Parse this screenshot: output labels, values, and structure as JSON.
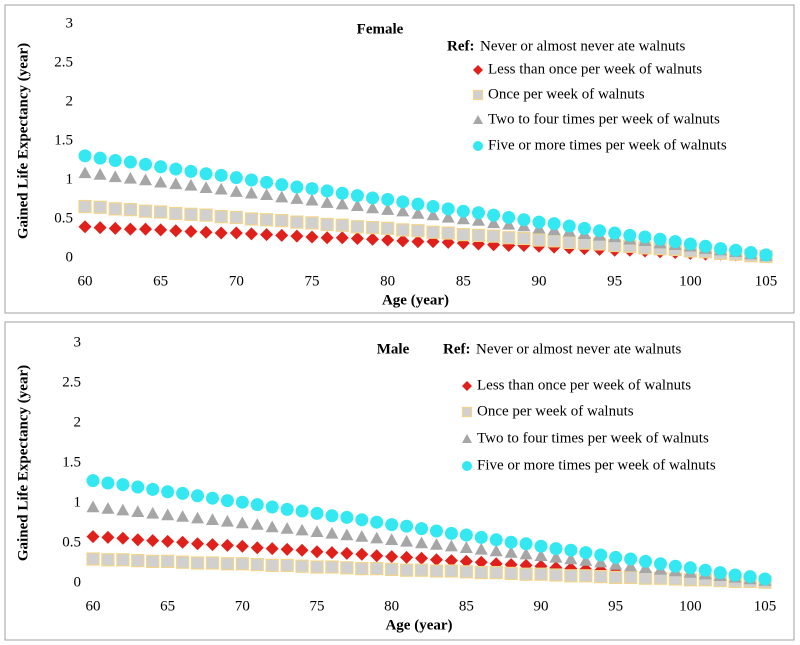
{
  "chart_data": [
    {
      "type": "scatter",
      "title": "Female",
      "x_label": "Age (year)",
      "y_label": "Gained Life Expectancy (year)",
      "legend_note": "Ref:",
      "legend_note_text": "Never or almost never ate walnuts",
      "xlim": [
        60,
        105
      ],
      "xticks": [
        60,
        65,
        70,
        75,
        80,
        85,
        90,
        95,
        100,
        105
      ],
      "ylim": [
        0,
        3
      ],
      "yticks": [
        0,
        0.5,
        1,
        1.5,
        2,
        2.5,
        3
      ],
      "grid": false,
      "x": [
        60,
        61,
        62,
        63,
        64,
        65,
        66,
        67,
        68,
        69,
        70,
        71,
        72,
        73,
        74,
        75,
        76,
        77,
        78,
        79,
        80,
        81,
        82,
        83,
        84,
        85,
        86,
        87,
        88,
        89,
        90,
        91,
        92,
        93,
        94,
        95,
        96,
        97,
        98,
        99,
        100,
        101,
        102,
        103,
        104,
        105
      ],
      "series": [
        {
          "name": "Less than once per week of walnuts",
          "color": "#e0201b",
          "marker": "diamond",
          "values": [
            0.4,
            0.39,
            0.38,
            0.37,
            0.37,
            0.36,
            0.35,
            0.34,
            0.33,
            0.32,
            0.32,
            0.31,
            0.3,
            0.29,
            0.28,
            0.27,
            0.26,
            0.26,
            0.25,
            0.24,
            0.23,
            0.22,
            0.21,
            0.21,
            0.2,
            0.19,
            0.18,
            0.17,
            0.16,
            0.16,
            0.15,
            0.14,
            0.13,
            0.12,
            0.11,
            0.1,
            0.1,
            0.09,
            0.08,
            0.07,
            0.06,
            0.05,
            0.05,
            0.04,
            0.03,
            0.02
          ]
        },
        {
          "name": "Once per week of walnuts",
          "color": "#d0d0d0",
          "marker": "square",
          "values": [
            0.66,
            0.65,
            0.63,
            0.62,
            0.6,
            0.59,
            0.57,
            0.56,
            0.55,
            0.53,
            0.52,
            0.5,
            0.49,
            0.48,
            0.46,
            0.45,
            0.43,
            0.42,
            0.4,
            0.39,
            0.38,
            0.36,
            0.35,
            0.33,
            0.32,
            0.3,
            0.29,
            0.28,
            0.26,
            0.25,
            0.23,
            0.22,
            0.2,
            0.19,
            0.18,
            0.16,
            0.15,
            0.13,
            0.12,
            0.11,
            0.09,
            0.08,
            0.06,
            0.05,
            0.03,
            0.02
          ]
        },
        {
          "name": "Two to four times per week of walnuts",
          "color": "#a6a6a6",
          "marker": "triangle",
          "values": [
            1.09,
            1.07,
            1.04,
            1.02,
            1.0,
            0.97,
            0.95,
            0.93,
            0.9,
            0.88,
            0.85,
            0.83,
            0.81,
            0.78,
            0.76,
            0.74,
            0.71,
            0.69,
            0.67,
            0.64,
            0.62,
            0.6,
            0.57,
            0.55,
            0.52,
            0.5,
            0.48,
            0.45,
            0.43,
            0.41,
            0.38,
            0.36,
            0.34,
            0.31,
            0.29,
            0.27,
            0.24,
            0.22,
            0.19,
            0.17,
            0.15,
            0.12,
            0.1,
            0.08,
            0.05,
            0.03
          ]
        },
        {
          "name": "Five or more times per week of walnuts",
          "color": "#33e8f0",
          "marker": "circle",
          "values": [
            1.31,
            1.28,
            1.25,
            1.23,
            1.2,
            1.17,
            1.14,
            1.11,
            1.08,
            1.06,
            1.03,
            1.0,
            0.97,
            0.94,
            0.91,
            0.89,
            0.86,
            0.83,
            0.8,
            0.77,
            0.75,
            0.72,
            0.69,
            0.66,
            0.63,
            0.6,
            0.58,
            0.55,
            0.52,
            0.49,
            0.46,
            0.44,
            0.41,
            0.38,
            0.35,
            0.32,
            0.29,
            0.27,
            0.24,
            0.21,
            0.18,
            0.15,
            0.12,
            0.1,
            0.07,
            0.04
          ]
        }
      ]
    },
    {
      "type": "scatter",
      "title": "Male",
      "x_label": "Age (year)",
      "y_label": "Gained Life Expectancy (year)",
      "legend_note": "Ref:",
      "legend_note_text": "Never or almost never ate walnuts",
      "xlim": [
        60,
        105
      ],
      "xticks": [
        60,
        65,
        70,
        75,
        80,
        85,
        90,
        95,
        100,
        105
      ],
      "ylim": [
        0,
        3
      ],
      "yticks": [
        0,
        0.5,
        1,
        1.5,
        2,
        2.5,
        3
      ],
      "grid": false,
      "x": [
        60,
        61,
        62,
        63,
        64,
        65,
        66,
        67,
        68,
        69,
        70,
        71,
        72,
        73,
        74,
        75,
        76,
        77,
        78,
        79,
        80,
        81,
        82,
        83,
        84,
        85,
        86,
        87,
        88,
        89,
        90,
        91,
        92,
        93,
        94,
        95,
        96,
        97,
        98,
        99,
        100,
        101,
        102,
        103,
        104,
        105
      ],
      "series": [
        {
          "name": "Less than once per week of walnuts",
          "color": "#e0201b",
          "marker": "diamond",
          "values": [
            0.58,
            0.57,
            0.56,
            0.54,
            0.53,
            0.52,
            0.51,
            0.49,
            0.48,
            0.47,
            0.46,
            0.44,
            0.43,
            0.42,
            0.41,
            0.39,
            0.38,
            0.37,
            0.36,
            0.34,
            0.33,
            0.32,
            0.31,
            0.29,
            0.28,
            0.27,
            0.26,
            0.24,
            0.23,
            0.22,
            0.21,
            0.19,
            0.18,
            0.17,
            0.16,
            0.14,
            0.13,
            0.12,
            0.11,
            0.09,
            0.08,
            0.07,
            0.06,
            0.05,
            0.03,
            0.02
          ]
        },
        {
          "name": "Once per week of walnuts",
          "color": "#d0d0d0",
          "marker": "square",
          "values": [
            0.3,
            0.29,
            0.29,
            0.28,
            0.27,
            0.27,
            0.26,
            0.25,
            0.25,
            0.24,
            0.24,
            0.23,
            0.22,
            0.22,
            0.21,
            0.2,
            0.2,
            0.19,
            0.18,
            0.18,
            0.17,
            0.16,
            0.16,
            0.15,
            0.15,
            0.14,
            0.13,
            0.13,
            0.12,
            0.11,
            0.11,
            0.1,
            0.09,
            0.09,
            0.08,
            0.07,
            0.07,
            0.06,
            0.06,
            0.05,
            0.04,
            0.04,
            0.03,
            0.02,
            0.02,
            0.01
          ]
        },
        {
          "name": "Two to four times per week of walnuts",
          "color": "#a6a6a6",
          "marker": "triangle",
          "values": [
            0.95,
            0.93,
            0.91,
            0.89,
            0.87,
            0.85,
            0.83,
            0.81,
            0.79,
            0.77,
            0.75,
            0.73,
            0.7,
            0.68,
            0.66,
            0.64,
            0.62,
            0.6,
            0.58,
            0.56,
            0.54,
            0.52,
            0.5,
            0.48,
            0.46,
            0.44,
            0.42,
            0.4,
            0.38,
            0.36,
            0.34,
            0.32,
            0.3,
            0.28,
            0.26,
            0.23,
            0.21,
            0.19,
            0.17,
            0.15,
            0.13,
            0.11,
            0.09,
            0.07,
            0.05,
            0.03
          ]
        },
        {
          "name": "Five or more times per week of walnuts",
          "color": "#33e8f0",
          "marker": "circle",
          "values": [
            1.28,
            1.25,
            1.23,
            1.2,
            1.17,
            1.14,
            1.12,
            1.09,
            1.06,
            1.03,
            1.01,
            0.98,
            0.95,
            0.92,
            0.9,
            0.87,
            0.84,
            0.82,
            0.79,
            0.76,
            0.73,
            0.71,
            0.68,
            0.65,
            0.62,
            0.6,
            0.57,
            0.54,
            0.51,
            0.49,
            0.46,
            0.43,
            0.41,
            0.38,
            0.35,
            0.32,
            0.3,
            0.27,
            0.24,
            0.21,
            0.19,
            0.16,
            0.13,
            0.1,
            0.08,
            0.05
          ]
        }
      ]
    }
  ]
}
